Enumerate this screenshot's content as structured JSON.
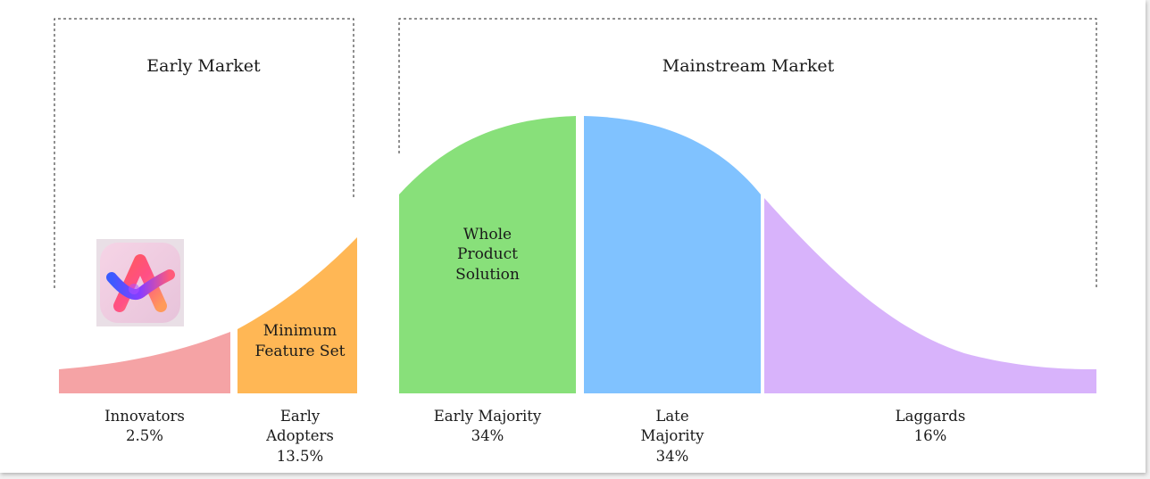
{
  "sections": {
    "early_market": "Early Market",
    "mainstream_market": "Mainstream Market"
  },
  "segments": [
    {
      "name_lines": [
        "Innovators"
      ],
      "percent": "2.5%",
      "color": "#f5a3a5"
    },
    {
      "name_lines": [
        "Early",
        "Adopters"
      ],
      "percent": "13.5%",
      "color": "#ffb755"
    },
    {
      "name_lines": [
        "Early Majority"
      ],
      "percent": "34%",
      "color": "#88e07a"
    },
    {
      "name_lines": [
        "Late",
        "Majority"
      ],
      "percent": "34%",
      "color": "#80c2ff"
    },
    {
      "name_lines": [
        "Laggards"
      ],
      "percent": "16%",
      "color": "#d8b3fb"
    }
  ],
  "callouts": {
    "minimum_feature_set": [
      "Minimum",
      "Feature Set"
    ],
    "whole_product_solution": [
      "Whole",
      "Product",
      "Solution"
    ]
  },
  "app_icon": "arc-browser-icon"
}
